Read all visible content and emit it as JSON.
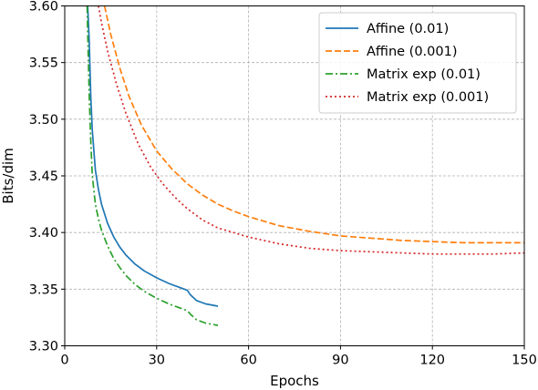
{
  "chart_data": {
    "type": "line",
    "xlabel": "Epochs",
    "ylabel": "Bits/dim",
    "xlim": [
      0,
      150
    ],
    "ylim": [
      3.3,
      3.6
    ],
    "x_ticks": [
      0,
      30,
      60,
      90,
      120,
      150
    ],
    "x_tick_labels": [
      "0",
      "30",
      "60",
      "90",
      "120",
      "150"
    ],
    "y_ticks": [
      3.3,
      3.35,
      3.4,
      3.45,
      3.5,
      3.55,
      3.6
    ],
    "y_tick_labels": [
      "3.30",
      "3.35",
      "3.40",
      "3.45",
      "3.50",
      "3.55",
      "3.60"
    ],
    "grid": true,
    "legend_position": "top-right",
    "series": [
      {
        "name": "Affine (0.01)",
        "color": "#1f77b4",
        "linestyle": "solid",
        "x": [
          7.5,
          8,
          8.5,
          9,
          10,
          11,
          12,
          14,
          16,
          18,
          20,
          23,
          26,
          30,
          34,
          38,
          40,
          41,
          43,
          46,
          50
        ],
        "y": [
          3.6,
          3.568,
          3.52,
          3.49,
          3.455,
          3.438,
          3.425,
          3.408,
          3.396,
          3.387,
          3.38,
          3.372,
          3.366,
          3.36,
          3.355,
          3.351,
          3.349,
          3.345,
          3.34,
          3.337,
          3.335
        ]
      },
      {
        "name": "Affine (0.001)",
        "color": "#ff7f0e",
        "linestyle": "dashed",
        "x": [
          13,
          15,
          18,
          21,
          25,
          30,
          35,
          40,
          45,
          50,
          55,
          60,
          70,
          80,
          90,
          100,
          110,
          120,
          130,
          140,
          150
        ],
        "y": [
          3.6,
          3.575,
          3.545,
          3.52,
          3.495,
          3.472,
          3.456,
          3.443,
          3.433,
          3.425,
          3.419,
          3.414,
          3.406,
          3.401,
          3.397,
          3.395,
          3.393,
          3.392,
          3.391,
          3.391,
          3.391
        ]
      },
      {
        "name": "Matrix exp (0.01)",
        "color": "#2ca02c",
        "linestyle": "dashdot",
        "x": [
          7.3,
          7.5,
          8,
          8.5,
          9,
          10,
          11,
          12,
          14,
          16,
          18,
          20,
          23,
          26,
          30,
          34,
          38,
          40,
          41,
          43,
          46,
          50
        ],
        "y": [
          3.6,
          3.575,
          3.52,
          3.48,
          3.45,
          3.425,
          3.412,
          3.402,
          3.388,
          3.377,
          3.369,
          3.362,
          3.354,
          3.348,
          3.342,
          3.337,
          3.333,
          3.331,
          3.328,
          3.323,
          3.32,
          3.318
        ]
      },
      {
        "name": "Matrix exp (0.001)",
        "color": "#d62728",
        "linestyle": "dotted",
        "x": [
          11,
          12,
          14,
          17,
          20,
          24,
          28,
          32,
          36,
          40,
          45,
          50,
          55,
          60,
          70,
          80,
          90,
          100,
          110,
          120,
          130,
          140,
          150
        ],
        "y": [
          3.6,
          3.585,
          3.56,
          3.53,
          3.505,
          3.478,
          3.458,
          3.443,
          3.431,
          3.421,
          3.411,
          3.404,
          3.4,
          3.396,
          3.39,
          3.386,
          3.384,
          3.383,
          3.382,
          3.381,
          3.381,
          3.381,
          3.382
        ]
      }
    ]
  }
}
